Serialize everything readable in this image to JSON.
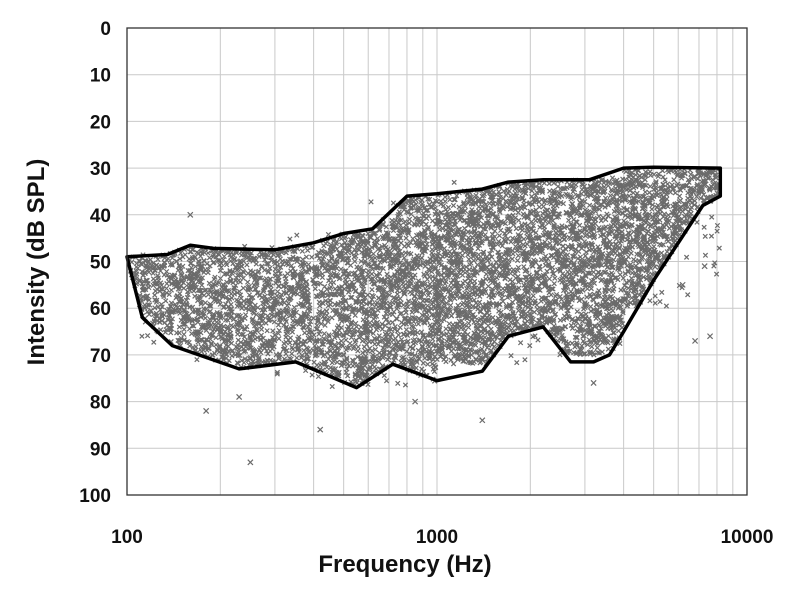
{
  "chart_data": {
    "type": "scatter",
    "title": "",
    "xlabel": "Frequency (Hz)",
    "ylabel": "Intensity (dB SPL)",
    "xscale": "log",
    "xlim": [
      100,
      10000
    ],
    "ylim": [
      0,
      100
    ],
    "y_inverted": true,
    "x_ticks": [
      "100",
      "1000",
      "10000"
    ],
    "y_ticks": [
      "0",
      "10",
      "20",
      "30",
      "40",
      "50",
      "60",
      "70",
      "80",
      "90",
      "100"
    ],
    "grid": true,
    "legend": "none",
    "marker_color": "#6b6b6b",
    "outline_color": "#000000",
    "point_cloud": [
      {
        "x_range": [
          100,
          150
        ],
        "y_range": [
          46,
          68
        ],
        "density": 0.8
      },
      {
        "x_range": [
          150,
          300
        ],
        "y_range": [
          46,
          73
        ],
        "density": 1.0
      },
      {
        "x_range": [
          300,
          600
        ],
        "y_range": [
          44,
          77
        ],
        "density": 1.2
      },
      {
        "x_range": [
          600,
          1000
        ],
        "y_range": [
          36,
          77
        ],
        "density": 1.5
      },
      {
        "x_range": [
          1000,
          2000
        ],
        "y_range": [
          33,
          72
        ],
        "density": 1.6
      },
      {
        "x_range": [
          2000,
          4000
        ],
        "y_range": [
          32,
          70
        ],
        "density": 1.5
      },
      {
        "x_range": [
          4000,
          8200
        ],
        "y_range": [
          30,
          60
        ],
        "density": 1.2
      }
    ],
    "outliers": [
      {
        "x": 180,
        "y": 82
      },
      {
        "x": 250,
        "y": 93
      },
      {
        "x": 420,
        "y": 86
      },
      {
        "x": 230,
        "y": 79
      },
      {
        "x": 1400,
        "y": 84
      },
      {
        "x": 6800,
        "y": 67
      },
      {
        "x": 7600,
        "y": 66
      },
      {
        "x": 7300,
        "y": 51
      },
      {
        "x": 6200,
        "y": 55
      },
      {
        "x": 160,
        "y": 40
      },
      {
        "x": 850,
        "y": 80
      },
      {
        "x": 3200,
        "y": 76
      }
    ],
    "series": [
      {
        "type": "outline",
        "points": [
          [
            100,
            49
          ],
          [
            135,
            48.5
          ],
          [
            160,
            46.5
          ],
          [
            190,
            47.2
          ],
          [
            300,
            47.5
          ],
          [
            400,
            46
          ],
          [
            500,
            44
          ],
          [
            620,
            43
          ],
          [
            800,
            36
          ],
          [
            1000,
            35.5
          ],
          [
            1400,
            34.5
          ],
          [
            1700,
            33
          ],
          [
            2200,
            32.5
          ],
          [
            3100,
            32.5
          ],
          [
            4000,
            30
          ],
          [
            5000,
            29.8
          ],
          [
            8200,
            30
          ],
          [
            8200,
            36
          ],
          [
            7200,
            38
          ],
          [
            5000,
            54
          ],
          [
            4000,
            65
          ],
          [
            3600,
            70
          ],
          [
            3200,
            71.5
          ],
          [
            2700,
            71.5
          ],
          [
            2200,
            64
          ],
          [
            1700,
            66
          ],
          [
            1400,
            73.5
          ],
          [
            1000,
            75.5
          ],
          [
            720,
            72
          ],
          [
            550,
            77
          ],
          [
            350,
            71.5
          ],
          [
            230,
            73
          ],
          [
            140,
            68
          ],
          [
            112,
            62
          ],
          [
            100,
            49
          ]
        ]
      }
    ]
  }
}
